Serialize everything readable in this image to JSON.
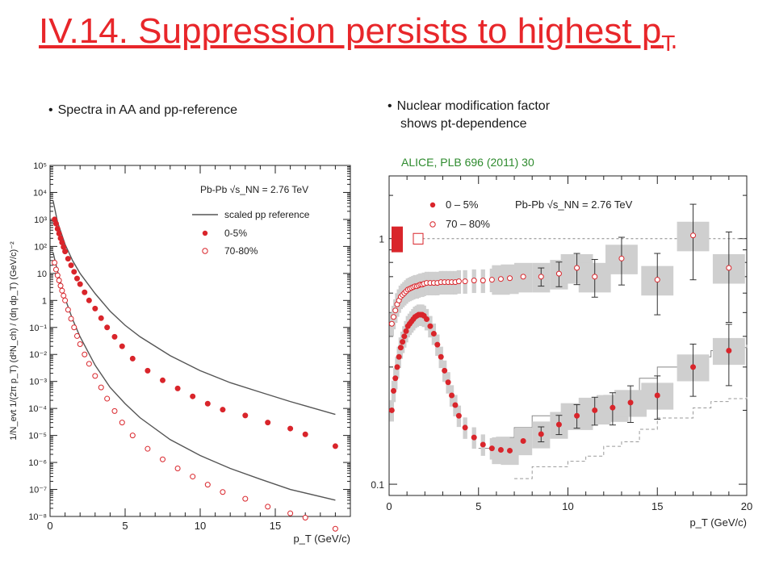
{
  "slide": {
    "title_main": "IV.14. Suppression persists to highest p",
    "title_sub": "T",
    "bullet_left": "Spectra in AA and pp-reference",
    "bullet_right_line1": "Nuclear modification factor",
    "bullet_right_line2": "shows pt-dependence",
    "reference": "ALICE, PLB 696 (2011) 30",
    "bullet_glyph": "•"
  },
  "colors": {
    "title": "#e8262a",
    "marker": "#d9252b",
    "line": "#555555",
    "band": "#cfcfcf",
    "reference": "#2e8b2e"
  },
  "chart_data": [
    {
      "type": "scatter",
      "id": "spectra",
      "xlabel": "p_T (GeV/c)",
      "ylabel": "1/N_evt 1/(2π p_T) (d²N_ch) / (dη dp_T) (GeV/c)⁻²",
      "xlim": [
        0,
        20
      ],
      "ylim": [
        1e-08,
        100000.0
      ],
      "yscale": "log",
      "x_ticks": [
        0,
        5,
        10,
        15
      ],
      "y_ticks": [
        "10⁻⁸",
        "10⁻⁷",
        "10⁻⁶",
        "10⁻⁵",
        "10⁻⁴",
        "10⁻³",
        "10⁻²",
        "10⁻¹",
        "1",
        "10",
        "10²",
        "10³",
        "10⁴",
        "10⁵"
      ],
      "legend": {
        "header": "Pb-Pb  √s_NN = 2.76 TeV",
        "entries": [
          "scaled pp reference",
          "0-5%",
          "70-80%"
        ],
        "placement": "top-right"
      },
      "series": [
        {
          "name": "0-5%",
          "marker": "filled-circle",
          "x": [
            0.3,
            0.4,
            0.5,
            0.6,
            0.7,
            0.8,
            0.9,
            1.0,
            1.2,
            1.4,
            1.6,
            1.8,
            2.0,
            2.3,
            2.6,
            3.0,
            3.4,
            3.8,
            4.3,
            4.8,
            5.5,
            6.5,
            7.5,
            8.5,
            9.5,
            10.5,
            11.5,
            13.0,
            14.5,
            16.0,
            17.0,
            19.0
          ],
          "y": [
            1000,
            700,
            450,
            300,
            200,
            140,
            95,
            65,
            35,
            20,
            11.5,
            6.5,
            4.0,
            2.0,
            1.0,
            0.5,
            0.22,
            0.1,
            0.045,
            0.02,
            0.007,
            0.0025,
            0.0011,
            0.00055,
            0.00028,
            0.00015,
            9e-05,
            5.5e-05,
            3e-05,
            1.8e-05,
            1.1e-05,
            4e-06
          ]
        },
        {
          "name": "70-80%",
          "marker": "open-circle",
          "x": [
            0.3,
            0.4,
            0.5,
            0.6,
            0.7,
            0.8,
            0.9,
            1.0,
            1.2,
            1.4,
            1.6,
            1.8,
            2.0,
            2.3,
            2.6,
            3.0,
            3.4,
            3.8,
            4.3,
            4.8,
            5.5,
            6.5,
            7.5,
            8.5,
            9.5,
            10.5,
            11.5,
            13.0,
            14.5,
            16.0,
            17.0,
            19.0
          ],
          "y": [
            25,
            14,
            8.5,
            5.5,
            3.5,
            2.3,
            1.5,
            1.0,
            0.45,
            0.21,
            0.1,
            0.048,
            0.024,
            0.01,
            0.0045,
            0.0016,
            0.0006,
            0.00023,
            8e-05,
            3e-05,
            1e-05,
            3.2e-06,
            1.3e-06,
            6e-07,
            3e-07,
            1.5e-07,
            8e-08,
            4.5e-08,
            2.3e-08,
            1.3e-08,
            9e-09,
            3.5e-09
          ]
        },
        {
          "name": "scaled pp reference (0-5%)",
          "style": "line",
          "x": [
            0.2,
            0.5,
            1.0,
            1.5,
            2.0,
            3.0,
            4.0,
            5.0,
            6.0,
            8.0,
            10.0,
            12.0,
            14.0,
            16.0,
            19.0
          ],
          "y": [
            5000,
            800,
            120,
            30,
            10,
            1.8,
            0.4,
            0.12,
            0.045,
            0.009,
            0.0025,
            0.0009,
            0.0004,
            0.00018,
            6e-05
          ]
        },
        {
          "name": "scaled pp reference (70-80%)",
          "style": "line",
          "x": [
            0.2,
            0.5,
            1.0,
            1.5,
            2.0,
            3.0,
            4.0,
            5.0,
            6.0,
            8.0,
            10.0,
            12.0,
            14.0,
            16.0,
            19.0
          ],
          "y": [
            60,
            12,
            1.2,
            0.2,
            0.045,
            0.004,
            0.0006,
            0.00015,
            4.5e-05,
            7e-06,
            1.8e-06,
            6e-07,
            2.4e-07,
            1e-07,
            4e-08
          ]
        }
      ]
    },
    {
      "type": "scatter",
      "id": "raa",
      "xlabel": "p_T (GeV/c)",
      "xlim": [
        0,
        20
      ],
      "ylim": [
        0.09,
        1.8
      ],
      "yscale": "log",
      "x_ticks": [
        0,
        5,
        10,
        15,
        20
      ],
      "y_ticks": [
        "0.1",
        "1"
      ],
      "legend": {
        "header": "Pb-Pb  √s_NN = 2.76 TeV",
        "entries": [
          "0 – 5%",
          "70 – 80%"
        ],
        "placement": "top"
      },
      "reference_line_y": 1,
      "series": [
        {
          "name": "0 – 5%",
          "marker": "filled-circle",
          "x": [
            0.15,
            0.25,
            0.35,
            0.45,
            0.55,
            0.65,
            0.75,
            0.85,
            0.95,
            1.05,
            1.15,
            1.25,
            1.35,
            1.45,
            1.55,
            1.65,
            1.75,
            1.85,
            1.95,
            2.1,
            2.3,
            2.5,
            2.7,
            2.9,
            3.1,
            3.3,
            3.5,
            3.7,
            3.9,
            4.25,
            4.75,
            5.25,
            5.75,
            6.25,
            6.75,
            7.5,
            8.5,
            9.5,
            10.5,
            11.5,
            12.5,
            13.5,
            15.0,
            17.0,
            19.0
          ],
          "y": [
            0.2,
            0.24,
            0.27,
            0.3,
            0.33,
            0.36,
            0.38,
            0.4,
            0.42,
            0.44,
            0.45,
            0.46,
            0.47,
            0.48,
            0.485,
            0.49,
            0.49,
            0.49,
            0.485,
            0.47,
            0.44,
            0.41,
            0.37,
            0.33,
            0.29,
            0.26,
            0.23,
            0.21,
            0.19,
            0.17,
            0.155,
            0.145,
            0.14,
            0.138,
            0.137,
            0.15,
            0.16,
            0.175,
            0.19,
            0.2,
            0.205,
            0.215,
            0.23,
            0.3,
            0.35
          ],
          "errors": {
            "stat_pt_threshold": 8,
            "stat": [
              0.012,
              0.012,
              0.012,
              0.014,
              0.014,
              0.016,
              0.016,
              0.018,
              0.022,
              0.024,
              0.028,
              0.04
            ]
          }
        },
        {
          "name": "70 – 80%",
          "marker": "open-circle",
          "x": [
            0.15,
            0.25,
            0.35,
            0.45,
            0.55,
            0.65,
            0.75,
            0.85,
            0.95,
            1.05,
            1.15,
            1.25,
            1.35,
            1.45,
            1.55,
            1.65,
            1.75,
            1.85,
            1.95,
            2.1,
            2.3,
            2.5,
            2.7,
            2.9,
            3.1,
            3.3,
            3.5,
            3.7,
            3.9,
            4.25,
            4.75,
            5.25,
            5.75,
            6.25,
            6.75,
            7.5,
            8.5,
            9.5,
            10.5,
            11.5,
            13.0,
            15.0,
            17.0,
            19.0
          ],
          "y": [
            0.45,
            0.48,
            0.51,
            0.54,
            0.56,
            0.58,
            0.59,
            0.6,
            0.61,
            0.62,
            0.625,
            0.63,
            0.635,
            0.64,
            0.64,
            0.645,
            0.65,
            0.65,
            0.655,
            0.66,
            0.66,
            0.66,
            0.66,
            0.665,
            0.665,
            0.665,
            0.665,
            0.665,
            0.67,
            0.67,
            0.675,
            0.675,
            0.68,
            0.685,
            0.69,
            0.7,
            0.7,
            0.72,
            0.76,
            0.7,
            0.83,
            0.68,
            1.03,
            0.76
          ]
        }
      ]
    }
  ]
}
